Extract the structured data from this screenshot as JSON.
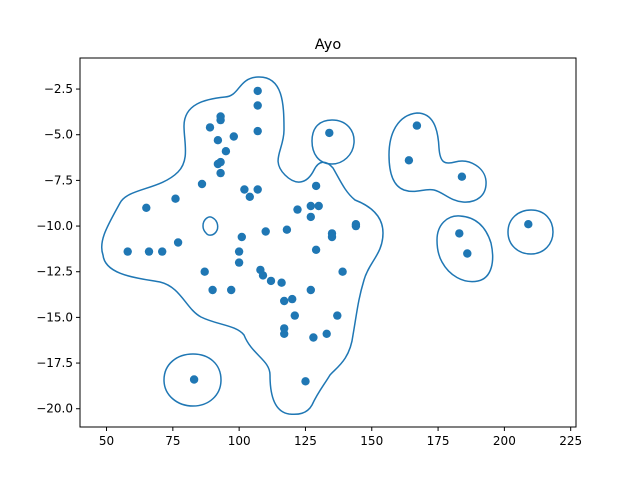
{
  "chart_data": {
    "type": "scatter",
    "title": "Ayo",
    "xlabel": "",
    "ylabel": "",
    "xlim": [
      40,
      227
    ],
    "ylim": [
      -21,
      -0.8
    ],
    "x_ticks": [
      50,
      75,
      100,
      125,
      150,
      175,
      200,
      225
    ],
    "y_ticks": [
      -2.5,
      -5.0,
      -7.5,
      -10.0,
      -12.5,
      -15.0,
      -17.5,
      -20.0
    ],
    "x_tick_labels": [
      "50",
      "75",
      "100",
      "125",
      "150",
      "175",
      "200",
      "225"
    ],
    "y_tick_labels": [
      "−2.5",
      "−5.0",
      "−7.5",
      "−10.0",
      "−12.5",
      "−15.0",
      "−17.5",
      "−20.0"
    ],
    "grid": false,
    "series": [
      {
        "name": "",
        "color": "#1f77b4",
        "points": [
          [
            58,
            -11.4
          ],
          [
            65,
            -9.0
          ],
          [
            66,
            -11.4
          ],
          [
            71,
            -11.4
          ],
          [
            76,
            -8.5
          ],
          [
            77,
            -10.9
          ],
          [
            83,
            -18.4
          ],
          [
            86,
            -7.7
          ],
          [
            87,
            -12.5
          ],
          [
            89,
            -4.6
          ],
          [
            90,
            -13.5
          ],
          [
            92,
            -5.3
          ],
          [
            92,
            -6.6
          ],
          [
            93,
            -6.5
          ],
          [
            93,
            -4.2
          ],
          [
            93,
            -4.0
          ],
          [
            93,
            -7.1
          ],
          [
            95,
            -5.9
          ],
          [
            97,
            -13.5
          ],
          [
            98,
            -5.1
          ],
          [
            100,
            -11.4
          ],
          [
            100,
            -12.0
          ],
          [
            101,
            -10.6
          ],
          [
            102,
            -8.0
          ],
          [
            104,
            -8.4
          ],
          [
            107,
            -8.0
          ],
          [
            107,
            -4.8
          ],
          [
            107,
            -3.4
          ],
          [
            107,
            -2.6
          ],
          [
            108,
            -12.4
          ],
          [
            109,
            -12.7
          ],
          [
            110,
            -10.3
          ],
          [
            112,
            -13.0
          ],
          [
            116,
            -13.1
          ],
          [
            117,
            -14.1
          ],
          [
            117,
            -15.9
          ],
          [
            117,
            -15.6
          ],
          [
            118,
            -10.2
          ],
          [
            120,
            -14.0
          ],
          [
            121,
            -14.9
          ],
          [
            122,
            -9.1
          ],
          [
            125,
            -18.5
          ],
          [
            127,
            -13.5
          ],
          [
            127,
            -8.9
          ],
          [
            127,
            -9.5
          ],
          [
            128,
            -16.1
          ],
          [
            129,
            -7.8
          ],
          [
            129,
            -11.3
          ],
          [
            130,
            -8.9
          ],
          [
            133,
            -15.9
          ],
          [
            134,
            -4.9
          ],
          [
            135,
            -10.4
          ],
          [
            135,
            -10.6
          ],
          [
            137,
            -14.9
          ],
          [
            139,
            -12.5
          ],
          [
            144,
            -9.9
          ],
          [
            144,
            -10.0
          ],
          [
            164,
            -6.4
          ],
          [
            167,
            -4.5
          ],
          [
            183,
            -10.4
          ],
          [
            184,
            -7.3
          ],
          [
            186,
            -11.5
          ],
          [
            209,
            -9.9
          ]
        ]
      }
    ],
    "contour_color": "#1f77b4"
  }
}
